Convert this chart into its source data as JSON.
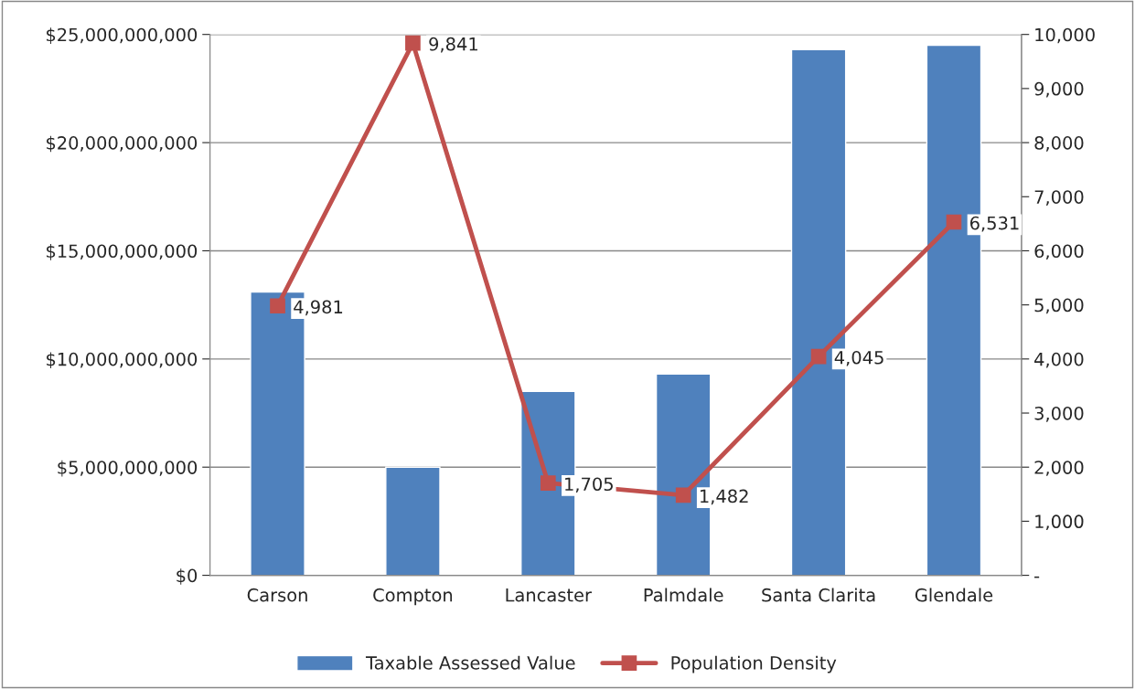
{
  "chart_data": {
    "type": "bar",
    "categories": [
      "Carson",
      "Compton",
      "Lancaster",
      "Palmdale",
      "Santa Clarita",
      "Glendale"
    ],
    "series": [
      {
        "name": "Taxable Assessed Value",
        "color": "#4f81bd",
        "values": [
          13100000000,
          5000000000,
          8500000000,
          9300000000,
          24300000000,
          24500000000
        ]
      },
      {
        "name": "Population Density",
        "type": "line",
        "axis": "y2",
        "color": "#c0504d",
        "marker": "square",
        "line_style": "solid",
        "values": [
          4981,
          9841,
          1705,
          1482,
          4045,
          6531
        ],
        "value_labels": [
          "4,981",
          "9,841",
          "1,705",
          "1,482",
          "4,045",
          "6,531"
        ]
      }
    ],
    "ylim": [
      0,
      25000000000
    ],
    "yticks": [
      {
        "value": 0,
        "label": "$0"
      },
      {
        "value": 5000000000,
        "label": "$5,000,000,000"
      },
      {
        "value": 10000000000,
        "label": "$10,000,000,000"
      },
      {
        "value": 15000000000,
        "label": "$15,000,000,000"
      },
      {
        "value": 20000000000,
        "label": "$20,000,000,000"
      },
      {
        "value": 25000000000,
        "label": "$25,000,000,000"
      }
    ],
    "y2lim": [
      0,
      10000
    ],
    "y2ticks": [
      {
        "value": 0,
        "label": "-"
      },
      {
        "value": 1000,
        "label": "1,000"
      },
      {
        "value": 2000,
        "label": "2,000"
      },
      {
        "value": 3000,
        "label": "3,000"
      },
      {
        "value": 4000,
        "label": "4,000"
      },
      {
        "value": 5000,
        "label": "5,000"
      },
      {
        "value": 6000,
        "label": "6,000"
      },
      {
        "value": 7000,
        "label": "7,000"
      },
      {
        "value": 8000,
        "label": "8,000"
      },
      {
        "value": 9000,
        "label": "9,000"
      },
      {
        "value": 10000,
        "label": "10,000"
      }
    ],
    "grid": "y",
    "legend": "bottom"
  }
}
